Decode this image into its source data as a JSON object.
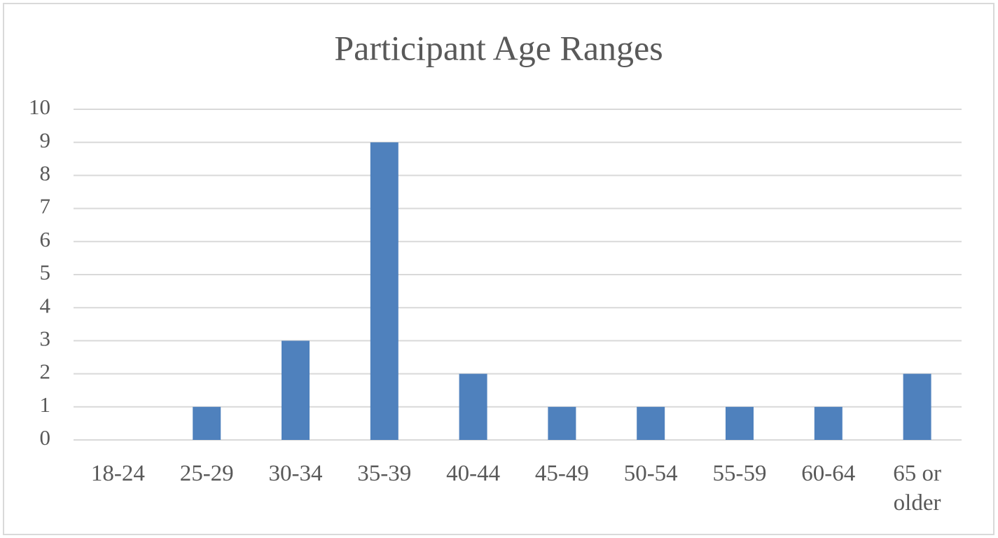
{
  "chart_data": {
    "type": "bar",
    "title": "Participant Age Ranges",
    "categories": [
      "18-24",
      "25-29",
      "30-34",
      "35-39",
      "40-44",
      "45-49",
      "50-54",
      "55-59",
      "60-64",
      "65 or older"
    ],
    "values": [
      0,
      1,
      3,
      9,
      2,
      1,
      1,
      1,
      1,
      2
    ],
    "color": "#4f81bd",
    "ylim": [
      0,
      10
    ],
    "yticks": [
      0,
      1,
      2,
      3,
      4,
      5,
      6,
      7,
      8,
      9,
      10
    ],
    "grid": true
  }
}
